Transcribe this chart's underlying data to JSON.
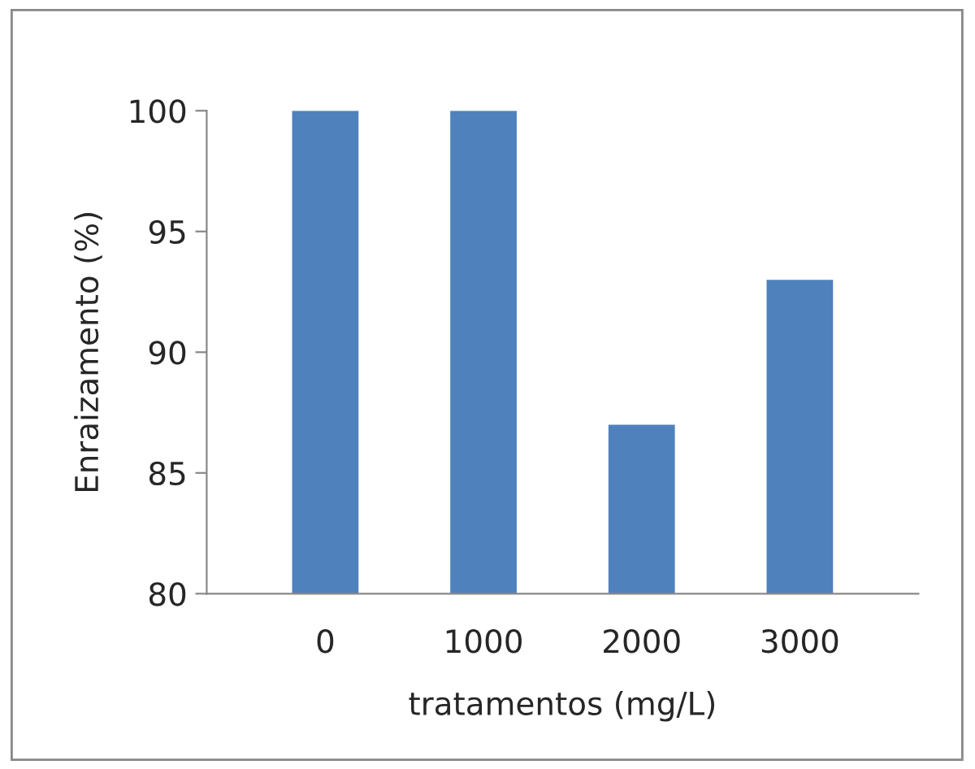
{
  "chart_data": {
    "type": "bar",
    "xlabel": "tratamentos (mg/L)",
    "ylabel": "Enraizamento (%)",
    "categories": [
      "0",
      "1000",
      "2000",
      "3000"
    ],
    "values": [
      100,
      100,
      87,
      93
    ],
    "color": "#4f81bd",
    "ylim": [
      80,
      100
    ],
    "yticks": [
      80,
      85,
      90,
      95,
      100
    ],
    "grid": false,
    "legend": false
  }
}
